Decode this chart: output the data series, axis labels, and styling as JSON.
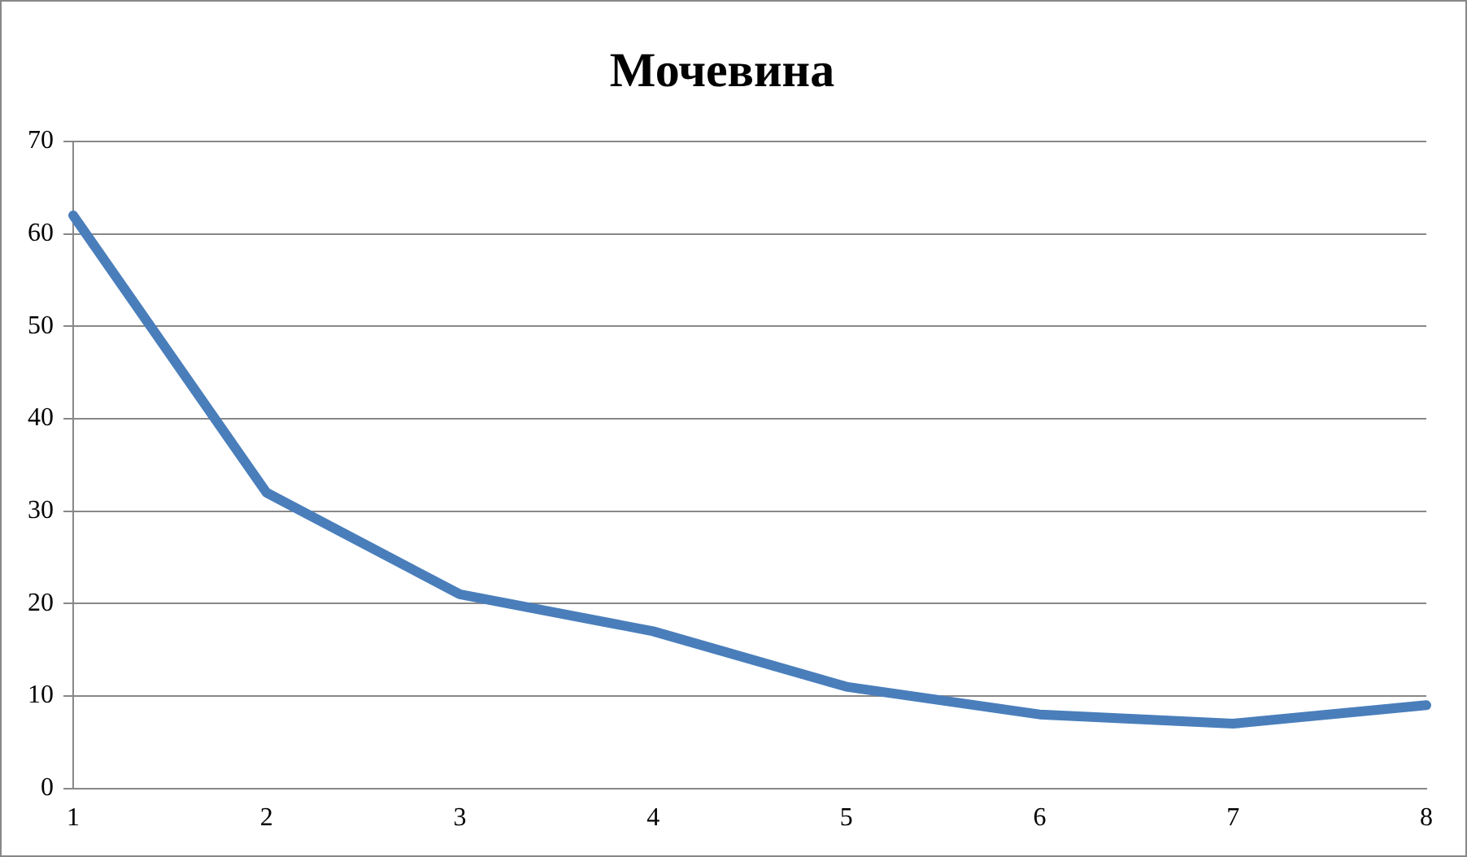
{
  "chart_data": {
    "type": "line",
    "title": "Мочевина",
    "categories": [
      "1",
      "2",
      "3",
      "4",
      "5",
      "6",
      "7",
      "8"
    ],
    "series": [
      {
        "color": "#4a7ebb",
        "values": [
          62,
          32,
          21,
          17,
          11,
          8,
          7,
          9
        ]
      }
    ],
    "ylim": [
      0,
      70
    ],
    "yticks": [
      0,
      10,
      20,
      30,
      40,
      50,
      60,
      70
    ],
    "grid": "y",
    "legend": false,
    "marker": "none"
  }
}
